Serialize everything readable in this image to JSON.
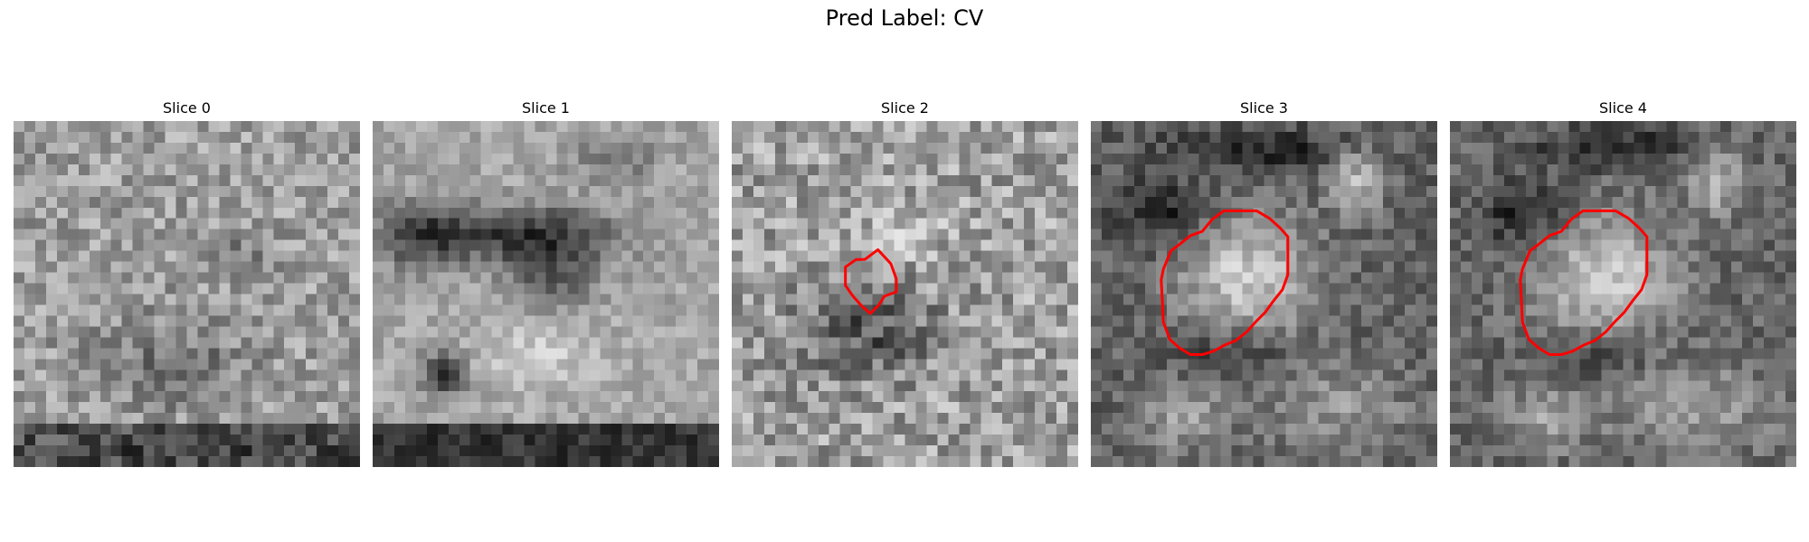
{
  "figure": {
    "title": "Pred Label: CV"
  },
  "panels": [
    {
      "title": "Slice 0",
      "contour": false
    },
    {
      "title": "Slice 1",
      "contour": false
    },
    {
      "title": "Slice 2",
      "contour": true
    },
    {
      "title": "Slice 3",
      "contour": true
    },
    {
      "title": "Slice 4",
      "contour": true
    }
  ],
  "colors": {
    "contour": "#ff0000",
    "background": "#ffffff"
  }
}
